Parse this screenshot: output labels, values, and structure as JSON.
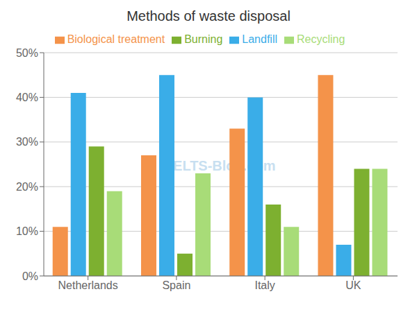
{
  "chart_data": {
    "type": "bar",
    "title": "Methods of waste disposal",
    "categories": [
      "Netherlands",
      "Spain",
      "Italy",
      "UK"
    ],
    "series": [
      {
        "name": "Biological treatment",
        "values": [
          11,
          27,
          33,
          45
        ],
        "color": "#f4934a"
      },
      {
        "name": "Landfill",
        "values": [
          41,
          45,
          40,
          7
        ],
        "color": "#3aade8"
      },
      {
        "name": "Burning",
        "values": [
          29,
          5,
          16,
          24
        ],
        "color": "#7db030"
      },
      {
        "name": "Recycling",
        "values": [
          19,
          23,
          11,
          24
        ],
        "color": "#a8dc78"
      }
    ],
    "ylim": [
      0,
      50
    ],
    "yticks": [
      {
        "value": 0,
        "label": "0%"
      },
      {
        "value": 10,
        "label": "10%"
      },
      {
        "value": 20,
        "label": "20%"
      },
      {
        "value": 30,
        "label": "30%"
      },
      {
        "value": 40,
        "label": "40%"
      },
      {
        "value": 50,
        "label": "50%"
      }
    ],
    "grid": true,
    "legend": "top",
    "annotations": [
      "IELTS-Blog.com"
    ]
  }
}
